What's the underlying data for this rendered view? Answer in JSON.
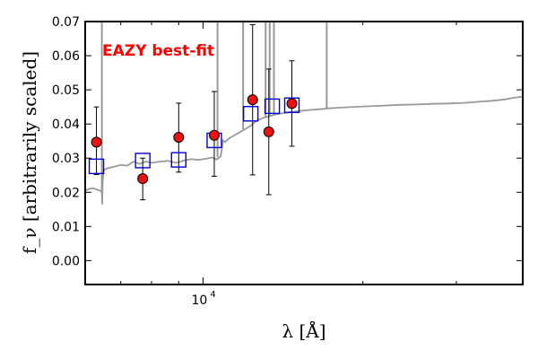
{
  "chart_data": {
    "type": "scatter",
    "ylabel": "f_ν [arbitrarily scaled]",
    "xlabel": "λ [Å]",
    "x_scale": "log",
    "xlim": [
      6000,
      40000
    ],
    "ylim": [
      -0.007,
      0.07
    ],
    "yticks": [
      "0.00",
      "0.01",
      "0.02",
      "0.03",
      "0.04",
      "0.05",
      "0.06",
      "0.07"
    ],
    "ytick_values": [
      0.0,
      0.01,
      0.02,
      0.03,
      0.04,
      0.05,
      0.06,
      0.07
    ],
    "xtick_label_base": "10",
    "xtick_label_exp": "4",
    "xtick_label_value": 10000,
    "annotation": "EAZY best-fit",
    "colors": {
      "observed": "#ee1111",
      "model_box": "#0000dd",
      "spectrum": "#999999",
      "annotation": "#ff0000"
    },
    "observed": [
      {
        "x": 6300,
        "y": 0.0347,
        "err_low": 0.0095,
        "err_high": 0.0103
      },
      {
        "x": 7700,
        "y": 0.024,
        "err_low": 0.0062,
        "err_high": 0.006
      },
      {
        "x": 9000,
        "y": 0.0361,
        "err_low": 0.0102,
        "err_high": 0.01
      },
      {
        "x": 10500,
        "y": 0.0367,
        "err_low": 0.012,
        "err_high": 0.0128
      },
      {
        "x": 12400,
        "y": 0.0471,
        "err_low": 0.022,
        "err_high": 0.022
      },
      {
        "x": 13300,
        "y": 0.0377,
        "err_low": 0.0184,
        "err_high": 0.0184
      },
      {
        "x": 14700,
        "y": 0.046,
        "err_low": 0.0125,
        "err_high": 0.0125
      }
    ],
    "model": [
      {
        "x": 6300,
        "y": 0.0276
      },
      {
        "x": 7700,
        "y": 0.0293
      },
      {
        "x": 9000,
        "y": 0.0295
      },
      {
        "x": 10500,
        "y": 0.0352
      },
      {
        "x": 12300,
        "y": 0.043
      },
      {
        "x": 13500,
        "y": 0.0452
      },
      {
        "x": 14700,
        "y": 0.0455
      }
    ],
    "spectrum": {
      "x": [
        6000,
        6100,
        6200,
        6400,
        6450,
        6460,
        6470,
        6500,
        6600,
        6800,
        7000,
        7200,
        7400,
        7600,
        7800,
        8000,
        8300,
        8600,
        8900,
        9200,
        9500,
        9800,
        10100,
        10400,
        10600,
        10800,
        10850,
        10900,
        11000,
        11200,
        11400,
        11700,
        12000,
        12300,
        12500,
        12700,
        13000,
        13300,
        13700,
        14200,
        14700,
        15200,
        15800,
        16500,
        17300,
        18200,
        19300,
        20500,
        22000,
        23500,
        25000,
        27000,
        29000,
        31000,
        33000,
        35000,
        37000,
        38500,
        40000
      ],
      "y": [
        0.0205,
        0.021,
        0.0212,
        0.0205,
        0.02,
        0.0165,
        0.0225,
        0.0265,
        0.027,
        0.0275,
        0.028,
        0.0278,
        0.029,
        0.0283,
        0.029,
        0.0286,
        0.029,
        0.0292,
        0.0286,
        0.0293,
        0.0297,
        0.0295,
        0.0298,
        0.0302,
        0.0296,
        0.0305,
        0.0326,
        0.0352,
        0.0347,
        0.0358,
        0.0365,
        0.0375,
        0.0385,
        0.0395,
        0.0405,
        0.0412,
        0.0418,
        0.0422,
        0.0428,
        0.0432,
        0.0435,
        0.0438,
        0.0441,
        0.0443,
        0.0446,
        0.0448,
        0.045,
        0.0452,
        0.0454,
        0.0456,
        0.0457,
        0.0459,
        0.046,
        0.0462,
        0.0465,
        0.0468,
        0.0472,
        0.0477,
        0.048
      ]
    },
    "spikes": [
      {
        "x": 6450,
        "y_top": 0.07,
        "y_base": 0.0205
      },
      {
        "x": 10650,
        "y_top": 0.07,
        "y_base": 0.0303
      },
      {
        "x": 11900,
        "y_top": 0.07,
        "y_base": 0.0385
      },
      {
        "x": 13120,
        "y_top": 0.07,
        "y_base": 0.0421
      },
      {
        "x": 13350,
        "y_top": 0.07,
        "y_base": 0.0424
      },
      {
        "x": 13600,
        "y_top": 0.07,
        "y_base": 0.0427
      },
      {
        "x": 17100,
        "y_top": 0.07,
        "y_base": 0.0446
      }
    ]
  }
}
